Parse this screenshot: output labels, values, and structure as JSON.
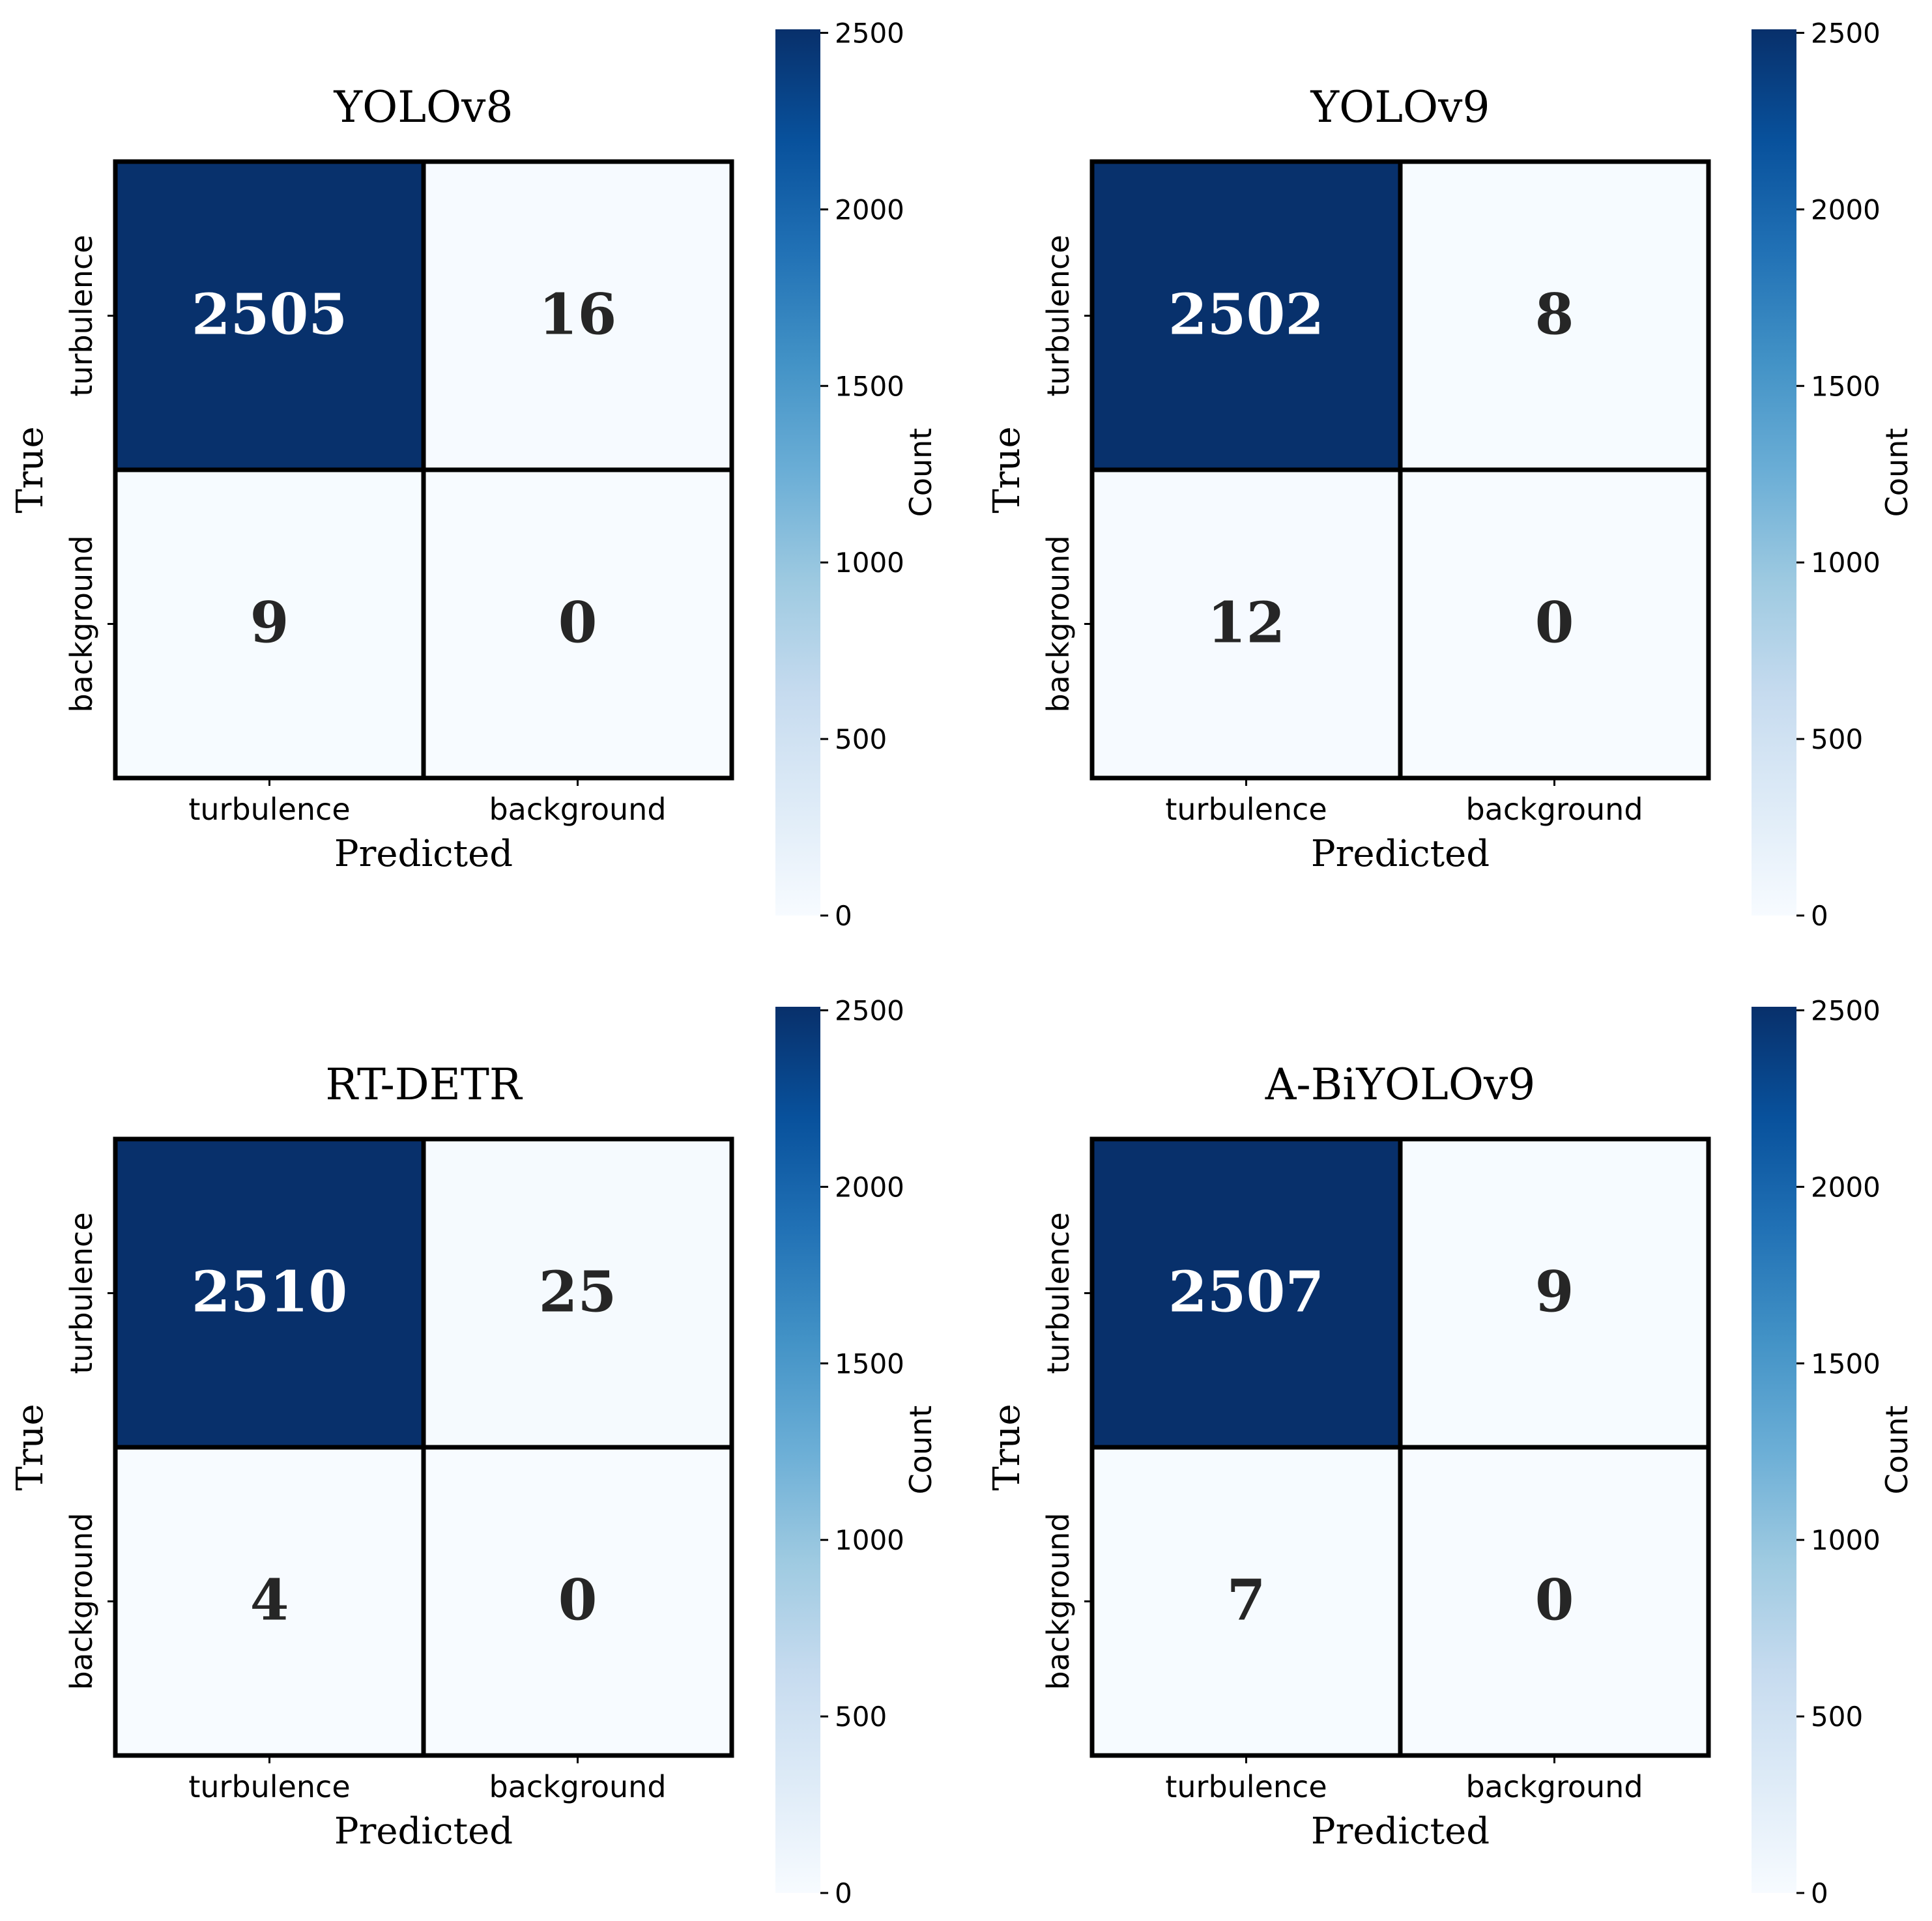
{
  "chart_data": [
    {
      "type": "heatmap",
      "title": "YOLOv8",
      "xlabel": "Predicted",
      "ylabel": "True",
      "x_categories": [
        "turbulence",
        "background"
      ],
      "y_categories": [
        "turbulence",
        "background"
      ],
      "values": [
        [
          2505,
          16
        ],
        [
          9,
          0
        ]
      ],
      "colorbar": {
        "label": "Count",
        "range": [
          0,
          2510
        ],
        "ticks": [
          0,
          500,
          1000,
          1500,
          2000,
          2500
        ]
      }
    },
    {
      "type": "heatmap",
      "title": "YOLOv9",
      "xlabel": "Predicted",
      "ylabel": "True",
      "x_categories": [
        "turbulence",
        "background"
      ],
      "y_categories": [
        "turbulence",
        "background"
      ],
      "values": [
        [
          2502,
          8
        ],
        [
          12,
          0
        ]
      ],
      "colorbar": {
        "label": "Count",
        "range": [
          0,
          2510
        ],
        "ticks": [
          0,
          500,
          1000,
          1500,
          2000,
          2500
        ]
      }
    },
    {
      "type": "heatmap",
      "title": "RT-DETR",
      "xlabel": "Predicted",
      "ylabel": "True",
      "x_categories": [
        "turbulence",
        "background"
      ],
      "y_categories": [
        "turbulence",
        "background"
      ],
      "values": [
        [
          2510,
          25
        ],
        [
          4,
          0
        ]
      ],
      "colorbar": {
        "label": "Count",
        "range": [
          0,
          2510
        ],
        "ticks": [
          0,
          500,
          1000,
          1500,
          2000,
          2500
        ]
      }
    },
    {
      "type": "heatmap",
      "title": "A-BiYOLOv9",
      "xlabel": "Predicted",
      "ylabel": "True",
      "x_categories": [
        "turbulence",
        "background"
      ],
      "y_categories": [
        "turbulence",
        "background"
      ],
      "values": [
        [
          2507,
          9
        ],
        [
          7,
          0
        ]
      ],
      "colorbar": {
        "label": "Count",
        "range": [
          0,
          2510
        ],
        "ticks": [
          0,
          500,
          1000,
          1500,
          2000,
          2500
        ]
      }
    }
  ],
  "colors": {
    "colormap": "Blues",
    "high": "#08306b",
    "low": "#f7fbff",
    "cell_border": "#000000",
    "text_on_dark": "#ffffff",
    "text_on_light": "#262626"
  }
}
